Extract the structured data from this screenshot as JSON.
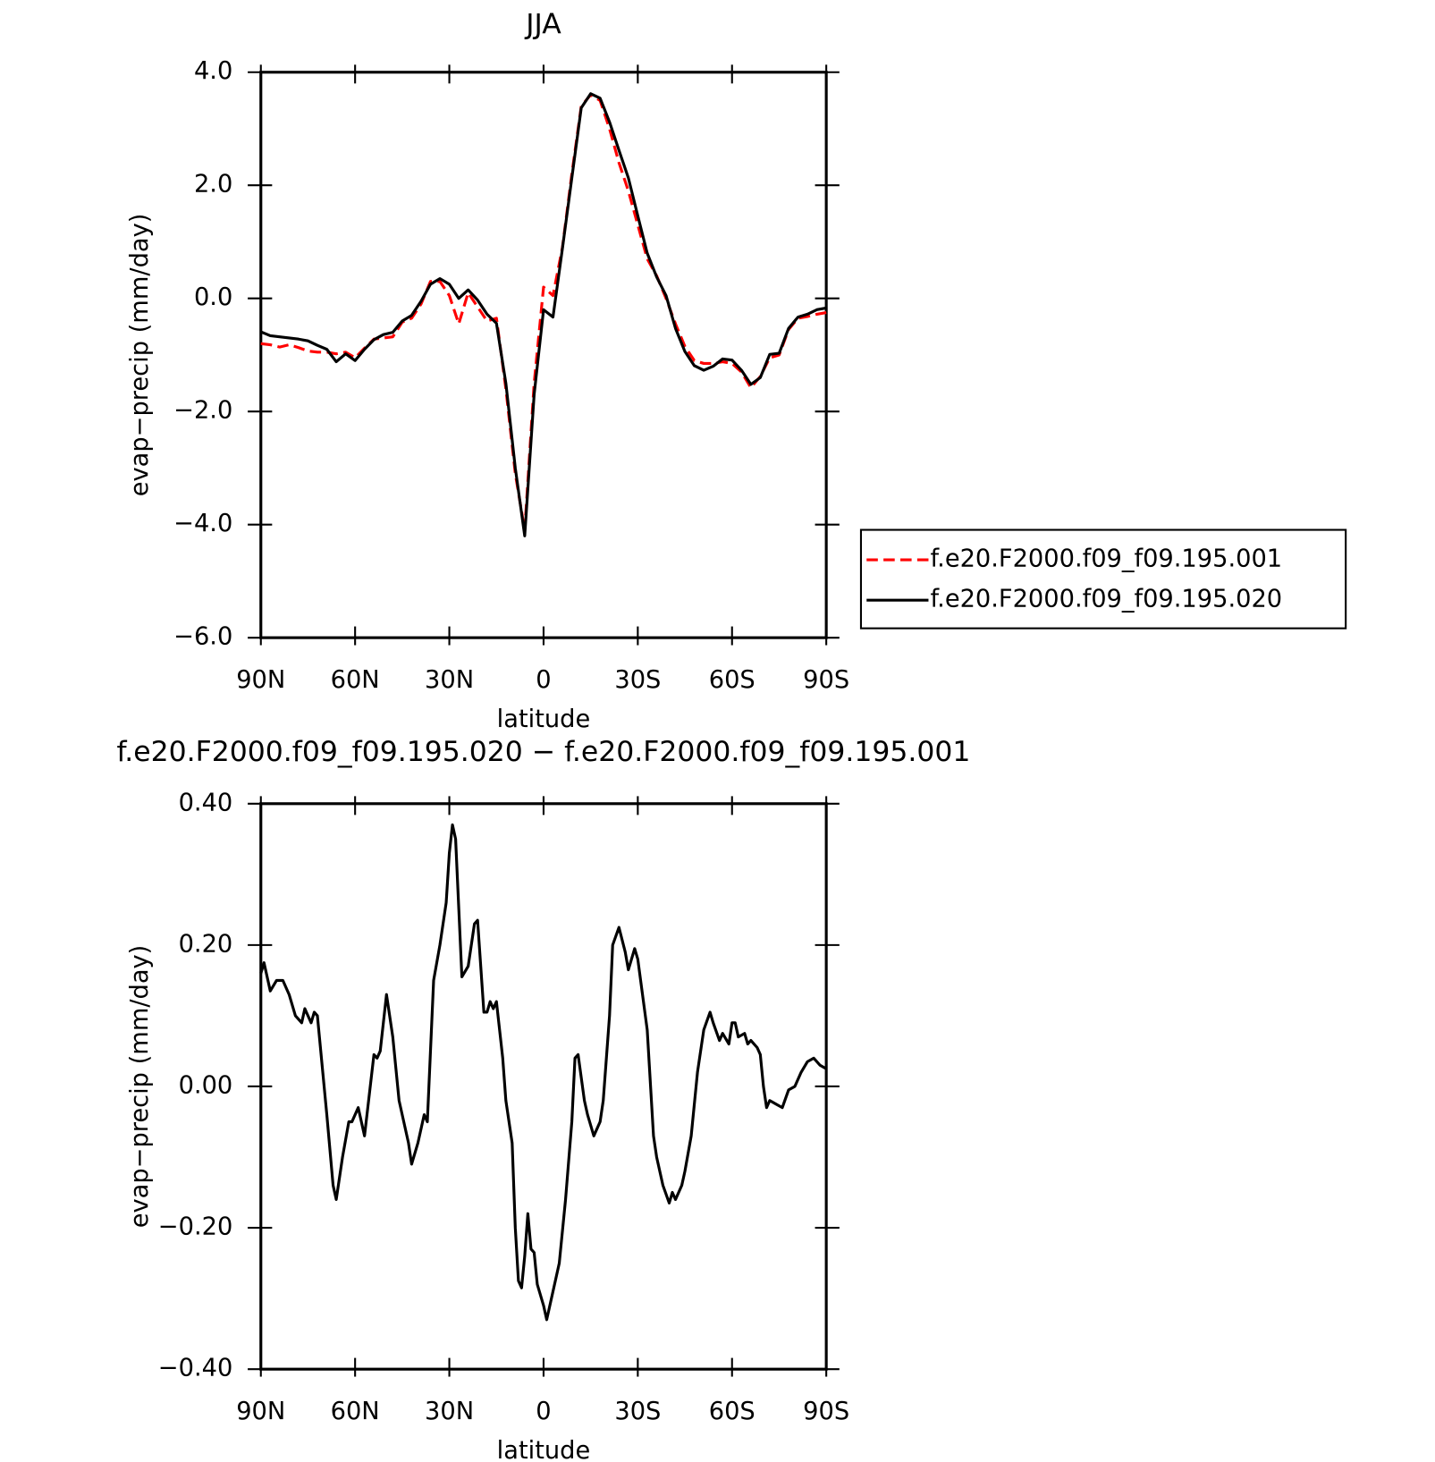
{
  "chart_data": [
    {
      "type": "line",
      "title": "JJA",
      "xlabel": "latitude",
      "ylabel": "evap−precip (mm/day)",
      "x": [
        90,
        87,
        84,
        81,
        78,
        75,
        72,
        69,
        66,
        63,
        60,
        57,
        54,
        51,
        48,
        45,
        42,
        39,
        36,
        33,
        30,
        27,
        24,
        21,
        18,
        15,
        12,
        9,
        6,
        3,
        0,
        -3,
        -6,
        -9,
        -12,
        -15,
        -18,
        -21,
        -24,
        -27,
        -30,
        -33,
        -36,
        -39,
        -42,
        -45,
        -48,
        -51,
        -54,
        -57,
        -60,
        -63,
        -66,
        -69,
        -72,
        -75,
        -78,
        -81,
        -84,
        -87,
        -90
      ],
      "series": [
        {
          "name": "f.e20.F2000.f09_f09.195.001",
          "color": "#ff0000",
          "dash": true,
          "values": [
            -0.8,
            -0.82,
            -0.86,
            -0.82,
            -0.87,
            -0.93,
            -0.95,
            -0.95,
            -0.98,
            -0.95,
            -1.05,
            -0.88,
            -0.72,
            -0.7,
            -0.68,
            -0.42,
            -0.35,
            -0.1,
            0.3,
            0.3,
            0.05,
            -0.45,
            0.1,
            -0.15,
            -0.4,
            -0.35,
            -1.6,
            -3.1,
            -4.1,
            -1.5,
            0.2,
            0.05,
            0.9,
            2.2,
            3.4,
            3.6,
            3.5,
            3.0,
            2.4,
            1.9,
            1.3,
            0.7,
            0.4,
            0.0,
            -0.45,
            -0.85,
            -1.1,
            -1.15,
            -1.15,
            -1.12,
            -1.15,
            -1.3,
            -1.58,
            -1.38,
            -1.05,
            -1.0,
            -0.55,
            -0.35,
            -0.32,
            -0.28,
            -0.25
          ]
        },
        {
          "name": "f.e20.F2000.f09_f09.195.020",
          "color": "#000000",
          "dash": false,
          "values": [
            -0.59,
            -0.66,
            -0.68,
            -0.7,
            -0.72,
            -0.75,
            -0.83,
            -0.9,
            -1.12,
            -0.98,
            -1.1,
            -0.9,
            -0.73,
            -0.64,
            -0.6,
            -0.4,
            -0.3,
            -0.05,
            0.25,
            0.35,
            0.25,
            0.0,
            0.15,
            -0.03,
            -0.28,
            -0.44,
            -1.5,
            -3.0,
            -4.2,
            -1.7,
            -0.2,
            -0.33,
            0.88,
            2.13,
            3.37,
            3.62,
            3.54,
            3.12,
            2.62,
            2.13,
            1.46,
            0.8,
            0.38,
            0.05,
            -0.53,
            -0.94,
            -1.19,
            -1.27,
            -1.2,
            -1.07,
            -1.09,
            -1.27,
            -1.52,
            -1.4,
            -0.99,
            -0.97,
            -0.53,
            -0.33,
            -0.28,
            -0.2,
            -0.17
          ]
        }
      ],
      "xlim": [
        90,
        -90
      ],
      "xticks": [
        {
          "value": 90,
          "label": "90N"
        },
        {
          "value": 60,
          "label": "60N"
        },
        {
          "value": 30,
          "label": "30N"
        },
        0,
        {
          "value": -30,
          "label": "30S"
        },
        {
          "value": -60,
          "label": "60S"
        },
        {
          "value": -90,
          "label": "90S"
        }
      ],
      "ylim": [
        -6,
        4
      ],
      "yticks": [
        {
          "value": -6,
          "label": "−6.0"
        },
        {
          "value": -4,
          "label": "−4.0"
        },
        {
          "value": -2,
          "label": "−2.0"
        },
        {
          "value": 0,
          "label": "0.0"
        },
        {
          "value": 2,
          "label": "2.0"
        },
        {
          "value": 4,
          "label": "4.0"
        }
      ],
      "legend": "right"
    },
    {
      "type": "line",
      "title": "f.e20.F2000.f09_f09.195.020 − f.e20.F2000.f09_f09.195.001",
      "xlabel": "latitude",
      "ylabel": "evap−precip (mm/day)",
      "x": [
        90,
        89,
        87,
        85,
        83,
        81,
        79,
        77,
        76,
        74,
        73,
        72,
        69,
        67,
        66,
        64,
        62,
        61,
        59,
        57,
        54,
        53,
        52,
        50,
        48,
        46,
        43,
        42,
        40,
        38,
        37,
        35,
        33,
        31,
        30,
        29,
        28,
        26,
        24,
        22,
        21,
        19,
        18,
        17,
        16,
        15,
        13,
        12,
        10,
        9,
        8,
        7,
        6,
        5,
        4,
        3,
        2,
        0,
        -1,
        -3,
        -5,
        -7,
        -9,
        -10,
        -11,
        -13,
        -14,
        -16,
        -18,
        -19,
        -21,
        -22,
        -24,
        -26,
        -27,
        -29,
        -30,
        -33,
        -35,
        -36,
        -38,
        -40,
        -41,
        -42,
        -44,
        -45,
        -47,
        -49,
        -51,
        -53,
        -54,
        -56,
        -57,
        -59,
        -60,
        -61,
        -62,
        -64,
        -65,
        -66,
        -68,
        -69,
        -70,
        -71,
        -72,
        -74,
        -76,
        -78,
        -80,
        -82,
        -84,
        -86,
        -88,
        -90
      ],
      "series": [
        {
          "color": "#000000",
          "dash": false,
          "values": [
            0.16,
            0.175,
            0.135,
            0.15,
            0.15,
            0.13,
            0.1,
            0.09,
            0.11,
            0.09,
            0.105,
            0.1,
            -0.04,
            -0.14,
            -0.16,
            -0.1,
            -0.05,
            -0.05,
            -0.03,
            -0.07,
            0.045,
            0.04,
            0.05,
            0.13,
            0.07,
            -0.02,
            -0.08,
            -0.11,
            -0.08,
            -0.04,
            -0.05,
            0.15,
            0.2,
            0.26,
            0.33,
            0.37,
            0.35,
            0.155,
            0.17,
            0.23,
            0.235,
            0.105,
            0.105,
            0.12,
            0.11,
            0.12,
            0.04,
            -0.02,
            -0.08,
            -0.2,
            -0.275,
            -0.285,
            -0.24,
            -0.18,
            -0.23,
            -0.235,
            -0.28,
            -0.31,
            -0.33,
            -0.29,
            -0.25,
            -0.16,
            -0.05,
            0.04,
            0.045,
            -0.02,
            -0.04,
            -0.07,
            -0.05,
            -0.02,
            0.1,
            0.2,
            0.225,
            0.19,
            0.165,
            0.195,
            0.18,
            0.08,
            -0.07,
            -0.1,
            -0.14,
            -0.165,
            -0.15,
            -0.16,
            -0.14,
            -0.12,
            -0.07,
            0.02,
            0.08,
            0.105,
            0.09,
            0.065,
            0.075,
            0.06,
            0.09,
            0.09,
            0.07,
            0.075,
            0.06,
            0.065,
            0.055,
            0.045,
            0.0,
            -0.03,
            -0.02,
            -0.025,
            -0.03,
            -0.005,
            0.0,
            0.02,
            0.035,
            0.04,
            0.03,
            0.025
          ]
        }
      ],
      "xlim": [
        90,
        -90
      ],
      "xticks": [
        {
          "value": 90,
          "label": "90N"
        },
        {
          "value": 60,
          "label": "60N"
        },
        {
          "value": 30,
          "label": "30N"
        },
        0,
        {
          "value": -30,
          "label": "30S"
        },
        {
          "value": -60,
          "label": "60S"
        },
        {
          "value": -90,
          "label": "90S"
        }
      ],
      "ylim": [
        -0.4,
        0.4
      ],
      "yticks": [
        {
          "value": -0.4,
          "label": "−0.40"
        },
        {
          "value": -0.2,
          "label": "−0.20"
        },
        {
          "value": 0,
          "label": "0.00"
        },
        {
          "value": 0.2,
          "label": "0.20"
        },
        {
          "value": 0.4,
          "label": "0.40"
        }
      ]
    }
  ]
}
